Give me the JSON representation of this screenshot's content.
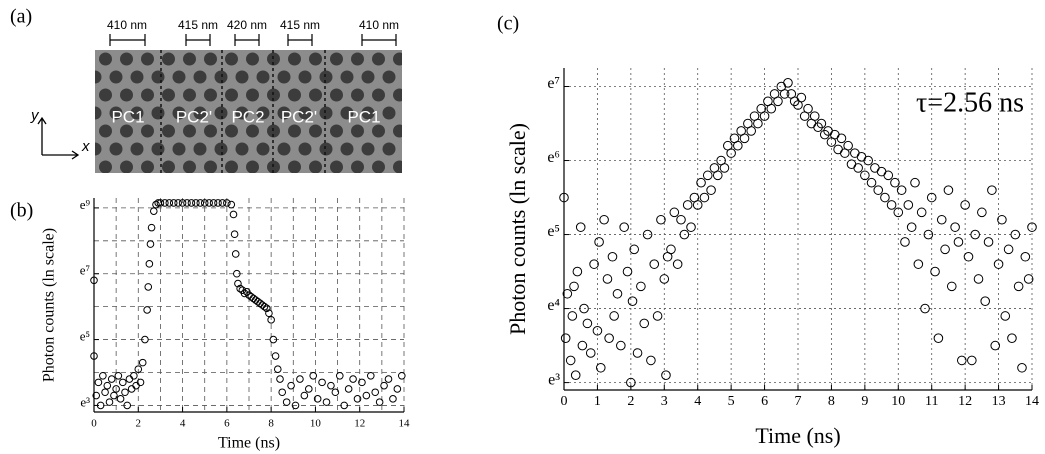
{
  "figure_a": {
    "panel_label": "(a)",
    "spacings": [
      "410 nm",
      "415 nm",
      "420 nm",
      "415 nm",
      "410 nm"
    ],
    "regions": [
      "PC1",
      "PC2'",
      "PC2",
      "PC2'",
      "PC1"
    ],
    "axis_labels": [
      "y",
      "x"
    ]
  },
  "chart_data": [
    {
      "type": "scatter",
      "panel_label": "(b)",
      "xlabel": "Time (ns)",
      "ylabel": "Photon counts (ln scale)",
      "x": [
        0,
        0,
        0.1,
        0.2,
        0.3,
        0.4,
        0.5,
        0.6,
        0.7,
        0.8,
        0.9,
        1.0,
        1.1,
        1.2,
        1.3,
        1.4,
        1.5,
        1.6,
        1.7,
        1.8,
        1.9,
        2.0,
        2.1,
        2.2,
        2.3,
        2.4,
        2.45,
        2.5,
        2.55,
        2.6,
        2.7,
        2.8,
        2.9,
        3.0,
        3.2,
        3.4,
        3.6,
        3.8,
        4.0,
        4.2,
        4.4,
        4.6,
        4.8,
        5.0,
        5.2,
        5.4,
        5.6,
        5.8,
        6.0,
        6.2,
        6.3,
        6.35,
        6.4,
        6.45,
        6.5,
        6.6,
        6.7,
        6.8,
        6.9,
        7.0,
        7.1,
        7.2,
        7.3,
        7.4,
        7.5,
        7.6,
        7.7,
        7.8,
        7.9,
        8.0,
        8.1,
        8.2,
        8.3,
        8.4,
        8.5,
        8.7,
        8.9,
        9.1,
        9.3,
        9.5,
        9.7,
        9.9,
        10.1,
        10.3,
        10.5,
        10.7,
        10.9,
        11.1,
        11.3,
        11.5,
        11.7,
        11.9,
        12.1,
        12.3,
        12.5,
        12.7,
        12.9,
        13.1,
        13.3,
        13.5,
        13.7,
        13.9
      ],
      "values": [
        6.8,
        4.5,
        3.3,
        3.7,
        3.0,
        3.9,
        3.4,
        3.6,
        3.1,
        3.8,
        3.3,
        3.5,
        3.9,
        3.2,
        3.7,
        3.4,
        3.0,
        3.8,
        3.5,
        3.9,
        3.6,
        4.1,
        3.7,
        4.3,
        5.0,
        5.9,
        6.6,
        7.3,
        7.9,
        8.4,
        8.9,
        9.1,
        9.15,
        9.15,
        9.15,
        9.15,
        9.15,
        9.15,
        9.15,
        9.15,
        9.15,
        9.15,
        9.15,
        9.15,
        9.15,
        9.15,
        9.15,
        9.15,
        9.15,
        9.1,
        8.8,
        8.2,
        7.6,
        7.0,
        6.7,
        6.55,
        6.5,
        6.4,
        6.45,
        6.35,
        6.3,
        6.25,
        6.2,
        6.15,
        6.1,
        6.05,
        6.0,
        5.95,
        5.8,
        5.6,
        5.0,
        4.5,
        4.1,
        3.8,
        3.4,
        3.1,
        3.6,
        3.0,
        3.8,
        3.3,
        3.5,
        3.9,
        3.2,
        3.7,
        3.1,
        3.6,
        3.4,
        3.9,
        3.0,
        3.5,
        3.8,
        3.2,
        3.7,
        3.3,
        3.9,
        3.4,
        3.1,
        3.6,
        3.8,
        3.2,
        3.5,
        3.9
      ],
      "xlim": [
        0,
        14
      ],
      "ylim": [
        2.8,
        9.3
      ],
      "xticks": [
        0,
        2,
        4,
        6,
        8,
        10,
        12,
        14
      ],
      "minor_xticks": [
        1,
        3,
        5,
        7,
        9,
        11,
        13
      ],
      "yticks": [
        {
          "value": 3,
          "label": "e³"
        },
        {
          "value": 5,
          "label": "e⁵"
        },
        {
          "value": 7,
          "label": "e⁷"
        },
        {
          "value": 9,
          "label": "e⁹"
        }
      ],
      "minor_yticks": [
        4,
        6,
        8
      ],
      "grid": true,
      "color": "#000000"
    },
    {
      "type": "scatter",
      "panel_label": "(c)",
      "xlabel": "Time (ns)",
      "ylabel": "Photon counts (ln scale)",
      "annotation": "τ=2.56 ns",
      "x": [
        0,
        0.05,
        0.1,
        0.2,
        0.25,
        0.3,
        0.35,
        0.4,
        0.5,
        0.55,
        0.6,
        0.7,
        0.8,
        0.9,
        1.0,
        1.05,
        1.1,
        1.2,
        1.3,
        1.35,
        1.45,
        1.5,
        1.6,
        1.7,
        1.8,
        1.9,
        2.0,
        2.05,
        2.1,
        2.2,
        2.3,
        2.4,
        2.5,
        2.6,
        2.7,
        2.8,
        2.9,
        3.0,
        3.05,
        3.1,
        3.2,
        3.3,
        3.4,
        3.5,
        3.6,
        3.7,
        3.8,
        3.9,
        4.0,
        4.1,
        4.2,
        4.3,
        4.4,
        4.5,
        4.6,
        4.7,
        4.8,
        4.9,
        5.0,
        5.1,
        5.2,
        5.3,
        5.4,
        5.5,
        5.6,
        5.7,
        5.8,
        5.9,
        6.0,
        6.1,
        6.2,
        6.3,
        6.4,
        6.5,
        6.6,
        6.7,
        6.8,
        6.9,
        7.0,
        7.1,
        7.2,
        7.3,
        7.4,
        7.5,
        7.6,
        7.7,
        7.8,
        7.9,
        8.0,
        8.1,
        8.2,
        8.3,
        8.4,
        8.5,
        8.6,
        8.7,
        8.8,
        8.9,
        9.0,
        9.1,
        9.2,
        9.3,
        9.4,
        9.5,
        9.6,
        9.7,
        9.8,
        9.9,
        10.0,
        10.1,
        10.2,
        10.3,
        10.4,
        10.5,
        10.6,
        10.7,
        10.8,
        10.9,
        11.0,
        11.1,
        11.2,
        11.3,
        11.4,
        11.5,
        11.6,
        11.7,
        11.8,
        11.9,
        12.0,
        12.1,
        12.2,
        12.3,
        12.4,
        12.5,
        12.6,
        12.7,
        12.8,
        12.9,
        13.0,
        13.1,
        13.2,
        13.3,
        13.4,
        13.5,
        13.6,
        13.7,
        13.8,
        13.9,
        14.0
      ],
      "values": [
        5.5,
        3.6,
        4.2,
        3.3,
        3.9,
        4.3,
        3.1,
        4.5,
        5.1,
        3.5,
        4.0,
        3.8,
        3.4,
        4.6,
        3.7,
        4.9,
        3.2,
        5.2,
        4.4,
        3.6,
        4.7,
        3.9,
        4.2,
        3.5,
        5.1,
        4.5,
        3.0,
        4.1,
        4.8,
        3.4,
        4.3,
        3.8,
        5.0,
        3.3,
        4.6,
        3.9,
        5.2,
        4.4,
        3.1,
        4.7,
        4.8,
        5.3,
        4.6,
        5.2,
        5.0,
        5.4,
        5.1,
        5.5,
        5.4,
        5.7,
        5.5,
        5.8,
        5.6,
        5.9,
        5.8,
        6.0,
        5.9,
        6.2,
        6.1,
        6.3,
        6.2,
        6.4,
        6.3,
        6.5,
        6.4,
        6.6,
        6.5,
        6.7,
        6.6,
        6.8,
        6.7,
        6.9,
        6.8,
        7.0,
        6.9,
        7.05,
        6.9,
        6.8,
        6.75,
        6.85,
        6.6,
        6.7,
        6.5,
        6.6,
        6.45,
        6.5,
        6.35,
        6.4,
        6.25,
        6.35,
        6.15,
        6.3,
        6.1,
        6.2,
        5.95,
        6.1,
        5.9,
        6.05,
        5.8,
        6.0,
        5.7,
        5.9,
        5.6,
        5.85,
        5.5,
        5.8,
        5.4,
        5.7,
        5.3,
        5.6,
        4.9,
        5.4,
        5.1,
        5.7,
        4.6,
        5.3,
        4.0,
        5.0,
        5.5,
        4.5,
        3.6,
        5.2,
        4.8,
        5.6,
        4.3,
        5.1,
        4.9,
        3.3,
        5.4,
        4.7,
        3.3,
        5.0,
        4.4,
        5.3,
        4.1,
        4.9,
        5.6,
        3.5,
        4.6,
        5.2,
        3.9,
        4.8,
        3.6,
        5.0,
        4.3,
        3.2,
        4.7,
        4.4,
        5.1
      ],
      "xlim": [
        0,
        14
      ],
      "ylim": [
        2.9,
        7.25
      ],
      "xticks": [
        0,
        1,
        2,
        3,
        4,
        5,
        6,
        7,
        8,
        9,
        10,
        11,
        12,
        13,
        14
      ],
      "minor_xticks": [],
      "yticks": [
        {
          "value": 3,
          "label": "e³"
        },
        {
          "value": 4,
          "label": "e⁴"
        },
        {
          "value": 5,
          "label": "e⁵"
        },
        {
          "value": 6,
          "label": "e⁶"
        },
        {
          "value": 7,
          "label": "e⁷"
        }
      ],
      "minor_yticks": [],
      "grid": true,
      "color": "#000000"
    }
  ]
}
